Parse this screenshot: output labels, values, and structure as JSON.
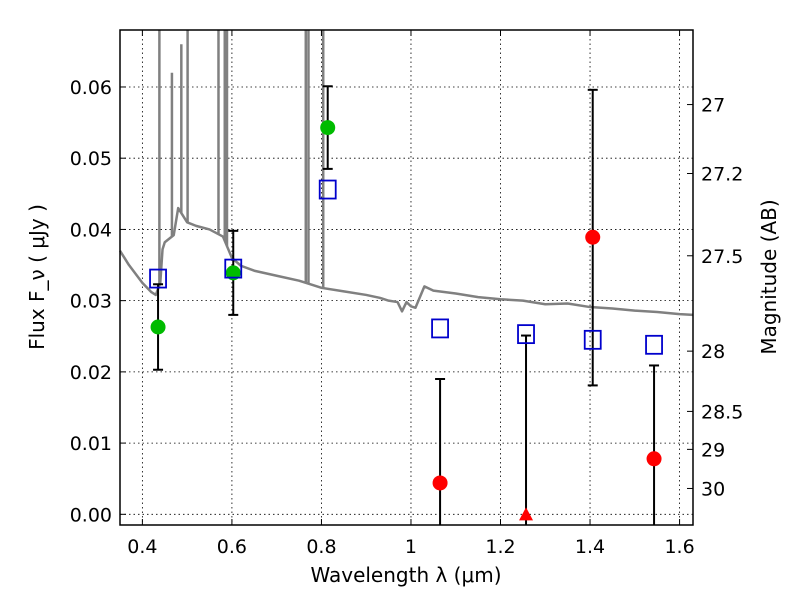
{
  "chart_data": {
    "type": "scatter",
    "xlabel": "Wavelength  λ (μm)",
    "ylabel": "Flux  F_ν  ( μJy )",
    "y2label": "Magnitude (AB)",
    "xlim": [
      0.35,
      1.63
    ],
    "ylim": [
      -0.0015,
      0.068
    ],
    "grid": true,
    "xticks": [
      0.4,
      0.6,
      0.8,
      1.0,
      1.2,
      1.4,
      1.6
    ],
    "xticklabels": [
      "0.4",
      "0.6",
      "0.8",
      "1",
      "1.2",
      "1.4",
      "1.6"
    ],
    "yticks": [
      0.0,
      0.01,
      0.02,
      0.03,
      0.04,
      0.05,
      0.06
    ],
    "yticklabels": [
      "0.00",
      "0.01",
      "0.02",
      "0.03",
      "0.04",
      "0.05",
      "0.06"
    ],
    "y2ticks": [
      {
        "label": "27",
        "flux": 0.05753
      },
      {
        "label": "27.2",
        "flux": 0.04785
      },
      {
        "label": "27.5",
        "flux": 0.0363
      },
      {
        "label": "28",
        "flux": 0.02291
      },
      {
        "label": "28.5",
        "flux": 0.01445
      },
      {
        "label": "29",
        "flux": 0.00912
      },
      {
        "label": "30",
        "flux": 0.00363
      }
    ],
    "colors": {
      "detected": "#00bb00",
      "nondetected": "#ff0000",
      "model_box": "#0000cc",
      "sed_line": "#808080",
      "errorbar": "#000000"
    },
    "series": [
      {
        "marker": "circle",
        "color": "#00bb00",
        "points": [
          {
            "x": 0.435,
            "y": 0.0263,
            "ylo": 0.0203,
            "yhi": 0.0323
          },
          {
            "x": 0.603,
            "y": 0.0339,
            "ylo": 0.028,
            "yhi": 0.0398
          },
          {
            "x": 0.814,
            "y": 0.0543,
            "ylo": 0.0485,
            "yhi": 0.0601
          }
        ]
      },
      {
        "marker": "circle",
        "color": "#ff0000",
        "points": [
          {
            "x": 1.065,
            "y": 0.0044,
            "ylo": -0.0015,
            "yhi": 0.019
          },
          {
            "x": 1.406,
            "y": 0.0389,
            "ylo": 0.0181,
            "yhi": 0.0596
          },
          {
            "x": 1.543,
            "y": 0.0078,
            "ylo": -0.0015,
            "yhi": 0.0209
          }
        ]
      },
      {
        "marker": "triangle",
        "color": "#ff0000",
        "points": [
          {
            "x": 1.257,
            "y": 0.0,
            "ylo": -0.0015,
            "yhi": 0.0251
          }
        ]
      },
      {
        "marker": "square",
        "color": "#0000cc",
        "points": [
          {
            "x": 0.435,
            "y": 0.0331
          },
          {
            "x": 0.603,
            "y": 0.0345
          },
          {
            "x": 0.814,
            "y": 0.0456
          },
          {
            "x": 1.065,
            "y": 0.0261
          },
          {
            "x": 1.257,
            "y": 0.0253
          },
          {
            "x": 1.406,
            "y": 0.0245
          },
          {
            "x": 1.543,
            "y": 0.0238
          }
        ]
      }
    ],
    "sed": {
      "continuum": [
        [
          0.35,
          0.037
        ],
        [
          0.37,
          0.035
        ],
        [
          0.4,
          0.0325
        ],
        [
          0.42,
          0.0312
        ],
        [
          0.43,
          0.0308
        ],
        [
          0.44,
          0.0325
        ],
        [
          0.445,
          0.0372
        ],
        [
          0.45,
          0.0382
        ],
        [
          0.47,
          0.0392
        ],
        [
          0.48,
          0.043
        ],
        [
          0.5,
          0.041
        ],
        [
          0.52,
          0.0405
        ],
        [
          0.55,
          0.04
        ],
        [
          0.58,
          0.039
        ],
        [
          0.6,
          0.036
        ],
        [
          0.62,
          0.0349
        ],
        [
          0.65,
          0.0342
        ],
        [
          0.7,
          0.0335
        ],
        [
          0.75,
          0.0328
        ],
        [
          0.78,
          0.0322
        ],
        [
          0.8,
          0.0318
        ],
        [
          0.85,
          0.0313
        ],
        [
          0.9,
          0.0308
        ],
        [
          0.93,
          0.0304
        ],
        [
          0.95,
          0.03
        ],
        [
          0.97,
          0.0298
        ],
        [
          0.98,
          0.0285
        ],
        [
          0.99,
          0.0298
        ],
        [
          1.0,
          0.0292
        ],
        [
          1.01,
          0.029
        ],
        [
          1.03,
          0.032
        ],
        [
          1.05,
          0.0314
        ],
        [
          1.1,
          0.031
        ],
        [
          1.15,
          0.0305
        ],
        [
          1.2,
          0.0302
        ],
        [
          1.25,
          0.03
        ],
        [
          1.3,
          0.0295
        ],
        [
          1.35,
          0.0296
        ],
        [
          1.4,
          0.0291
        ],
        [
          1.45,
          0.0289
        ],
        [
          1.5,
          0.0286
        ],
        [
          1.55,
          0.0284
        ],
        [
          1.6,
          0.0281
        ],
        [
          1.63,
          0.028
        ]
      ],
      "lines": [
        [
          0.438,
          0.068
        ],
        [
          0.466,
          0.062
        ],
        [
          0.487,
          0.066
        ],
        [
          0.501,
          0.068
        ],
        [
          0.57,
          0.068
        ],
        [
          0.584,
          0.068
        ],
        [
          0.589,
          0.068
        ],
        [
          0.765,
          0.068
        ],
        [
          0.771,
          0.068
        ],
        [
          0.804,
          0.068
        ]
      ]
    }
  }
}
